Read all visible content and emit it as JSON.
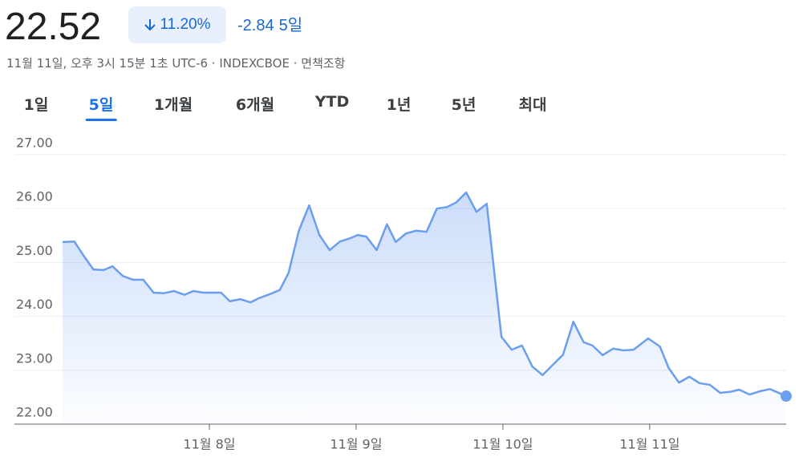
{
  "header": {
    "price": "22.52",
    "change_percent": "11.20%",
    "change": "-2.84",
    "period": "5일",
    "subtitle": "11월 11일, 오후 3시 15분 1초 UTC-6 · INDEXCBOE · 면책조항"
  },
  "tabs": [
    "1일",
    "5일",
    "1개월",
    "6개월",
    "YTD",
    "1년",
    "5년",
    "최대"
  ],
  "selected_tab_index": 1,
  "chart_data": {
    "type": "line",
    "color": "#6b9ef0",
    "grid": true,
    "x": [
      0,
      0.08,
      0.14,
      0.21,
      0.28,
      0.34,
      0.41,
      0.48,
      0.55,
      0.62,
      0.69,
      0.76,
      0.83,
      0.89,
      0.96,
      1.03,
      1.08,
      1.14,
      1.21,
      1.28,
      1.34,
      1.41,
      1.48,
      1.54,
      1.61,
      1.68,
      1.75,
      1.82,
      1.89,
      1.96,
      2.01,
      2.07,
      2.14,
      2.21,
      2.27,
      2.34,
      2.41,
      2.48,
      2.55,
      2.62,
      2.68,
      2.75,
      2.82,
      2.89,
      2.99,
      3.06,
      3.13,
      3.2,
      3.27,
      3.34,
      3.41,
      3.48,
      3.55,
      3.61,
      3.68,
      3.75,
      3.82,
      3.89,
      3.99,
      4.07,
      4.13,
      4.2,
      4.27,
      4.34,
      4.41,
      4.48,
      4.55,
      4.61,
      4.68,
      4.75,
      4.82,
      4.93
    ],
    "values": [
      25.38,
      25.39,
      25.14,
      24.87,
      24.86,
      24.93,
      24.75,
      24.68,
      24.68,
      24.44,
      24.43,
      24.47,
      24.4,
      24.47,
      24.44,
      24.44,
      24.44,
      24.28,
      24.32,
      24.26,
      24.34,
      24.41,
      24.49,
      24.81,
      25.59,
      26.06,
      25.51,
      25.23,
      25.39,
      25.45,
      25.51,
      25.48,
      25.23,
      25.71,
      25.38,
      25.54,
      25.59,
      25.57,
      26.0,
      26.03,
      26.11,
      26.3,
      25.94,
      26.09,
      23.62,
      23.38,
      23.46,
      23.07,
      22.91,
      23.1,
      23.29,
      23.9,
      23.52,
      23.46,
      23.28,
      23.4,
      23.37,
      23.38,
      23.59,
      23.44,
      23.04,
      22.77,
      22.88,
      22.76,
      22.73,
      22.58,
      22.6,
      22.64,
      22.55,
      22.61,
      22.65,
      22.52
    ],
    "xlim": [
      0,
      4.93
    ],
    "xticks": [
      {
        "value": 1,
        "label": "11월 8일"
      },
      {
        "value": 2,
        "label": "11월 9일"
      },
      {
        "value": 3,
        "label": "11월 10일"
      },
      {
        "value": 4,
        "label": "11월 11일"
      }
    ],
    "ylim": [
      22,
      27
    ],
    "yticks": [
      {
        "value": 22,
        "label": "22.00"
      },
      {
        "value": 23,
        "label": "23.00"
      },
      {
        "value": 24,
        "label": "24.00"
      },
      {
        "value": 25,
        "label": "25.00"
      },
      {
        "value": 26,
        "label": "26.00"
      },
      {
        "value": 27,
        "label": "27.00"
      }
    ]
  }
}
